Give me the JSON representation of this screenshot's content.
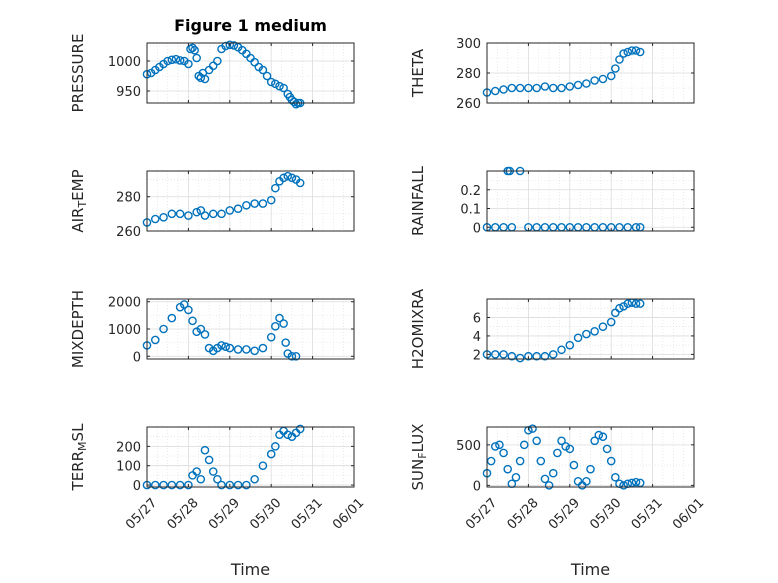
{
  "chart_data": [
    {
      "type": "scatter",
      "title": "Figure 1 medium",
      "ylabel": "PRESSURE",
      "xlabel": "",
      "x_ticks": [
        "05/27",
        "05/28",
        "05/29",
        "05/30",
        "05/31",
        "06/01"
      ],
      "xlim": [
        0,
        5
      ],
      "ylim": [
        930,
        1030
      ],
      "y_ticks": [
        950,
        1000
      ],
      "grid": "on",
      "series": [
        {
          "x": [
            0.0,
            0.1,
            0.2,
            0.3,
            0.4,
            0.5,
            0.6,
            0.7,
            0.8,
            0.9,
            1.0,
            1.05,
            1.1,
            1.15,
            1.2,
            1.25,
            1.3,
            1.35,
            1.4,
            1.5,
            1.6,
            1.7,
            1.8,
            1.9,
            2.0,
            2.1,
            2.2,
            2.3,
            2.4,
            2.5,
            2.6,
            2.7,
            2.8,
            2.9,
            3.0,
            3.1,
            3.2,
            3.3,
            3.4,
            3.45,
            3.5,
            3.55,
            3.6,
            3.65,
            3.7
          ],
          "y": [
            978,
            980,
            985,
            990,
            995,
            1000,
            1002,
            1003,
            1001,
            1000,
            995,
            1020,
            1022,
            1018,
            1005,
            975,
            972,
            980,
            970,
            985,
            992,
            1000,
            1020,
            1025,
            1027,
            1026,
            1023,
            1018,
            1012,
            1005,
            998,
            990,
            985,
            975,
            965,
            962,
            958,
            955,
            945,
            940,
            935,
            932,
            928,
            930,
            930
          ]
        }
      ]
    },
    {
      "type": "scatter",
      "title": "",
      "ylabel": "THETA",
      "xlabel": "",
      "x_ticks": [
        "05/27",
        "05/28",
        "05/29",
        "05/30",
        "05/31",
        "06/01"
      ],
      "xlim": [
        0,
        5
      ],
      "ylim": [
        260,
        300
      ],
      "y_ticks": [
        260,
        280,
        300
      ],
      "grid": "on",
      "series": [
        {
          "x": [
            0.0,
            0.2,
            0.4,
            0.6,
            0.8,
            1.0,
            1.2,
            1.4,
            1.6,
            1.8,
            2.0,
            2.2,
            2.4,
            2.6,
            2.8,
            3.0,
            3.1,
            3.2,
            3.3,
            3.4,
            3.5,
            3.6,
            3.7
          ],
          "y": [
            267,
            268,
            269,
            270,
            270,
            270,
            270,
            271,
            270,
            270,
            271,
            272,
            273,
            275,
            276,
            278,
            283,
            289,
            293,
            294,
            295,
            295,
            294
          ]
        }
      ]
    },
    {
      "type": "scatter",
      "title": "",
      "ylabel": "AIR_TEMP",
      "xlabel": "",
      "x_ticks": [
        "05/27",
        "05/28",
        "05/29",
        "05/30",
        "05/31",
        "06/01"
      ],
      "xlim": [
        0,
        5
      ],
      "ylim": [
        260,
        295
      ],
      "y_ticks": [
        260,
        280
      ],
      "grid": "on",
      "series": [
        {
          "x": [
            0.0,
            0.2,
            0.4,
            0.6,
            0.8,
            1.0,
            1.2,
            1.3,
            1.4,
            1.6,
            1.8,
            2.0,
            2.2,
            2.4,
            2.6,
            2.8,
            3.0,
            3.1,
            3.2,
            3.3,
            3.4,
            3.5,
            3.6,
            3.7
          ],
          "y": [
            265,
            267,
            268,
            270,
            270,
            269,
            271,
            272,
            269,
            270,
            270,
            272,
            273,
            275,
            276,
            276,
            278,
            285,
            289,
            291,
            292,
            291,
            290,
            288
          ]
        }
      ]
    },
    {
      "type": "scatter",
      "title": "",
      "ylabel": "RAINFALL",
      "xlabel": "",
      "x_ticks": [
        "05/27",
        "05/28",
        "05/29",
        "05/30",
        "05/31",
        "06/01"
      ],
      "xlim": [
        0,
        5
      ],
      "ylim": [
        -0.02,
        0.3
      ],
      "y_ticks": [
        0,
        0.1,
        0.2
      ],
      "grid": "on",
      "series": [
        {
          "x": [
            0.0,
            0.2,
            0.4,
            0.5,
            0.55,
            0.6,
            0.8,
            1.0,
            1.2,
            1.4,
            1.6,
            1.8,
            2.0,
            2.2,
            2.4,
            2.6,
            2.8,
            3.0,
            3.2,
            3.4,
            3.6,
            3.7
          ],
          "y": [
            0,
            0,
            0,
            0.3,
            0.3,
            0,
            0.3,
            0,
            0,
            0,
            0,
            0,
            0,
            0,
            0,
            0,
            0,
            0,
            0,
            0,
            0,
            0
          ]
        }
      ]
    },
    {
      "type": "scatter",
      "title": "",
      "ylabel": "MIXDEPTH",
      "xlabel": "",
      "x_ticks": [
        "05/27",
        "05/28",
        "05/29",
        "05/30",
        "05/31",
        "06/01"
      ],
      "xlim": [
        0,
        5
      ],
      "ylim": [
        -100,
        2100
      ],
      "y_ticks": [
        0,
        1000,
        2000
      ],
      "grid": "on",
      "series": [
        {
          "x": [
            0.0,
            0.2,
            0.4,
            0.6,
            0.8,
            0.9,
            1.0,
            1.1,
            1.2,
            1.3,
            1.4,
            1.5,
            1.6,
            1.7,
            1.8,
            1.9,
            2.0,
            2.2,
            2.4,
            2.6,
            2.8,
            3.0,
            3.1,
            3.2,
            3.3,
            3.35,
            3.4,
            3.5,
            3.6
          ],
          "y": [
            400,
            600,
            1000,
            1400,
            1800,
            1900,
            1700,
            1300,
            900,
            1000,
            800,
            300,
            200,
            300,
            400,
            350,
            300,
            250,
            250,
            200,
            300,
            700,
            1100,
            1400,
            1200,
            500,
            100,
            0,
            0
          ]
        }
      ]
    },
    {
      "type": "scatter",
      "title": "",
      "ylabel": "H2OMIXRA",
      "xlabel": "",
      "x_ticks": [
        "05/27",
        "05/28",
        "05/29",
        "05/30",
        "05/31",
        "06/01"
      ],
      "xlim": [
        0,
        5
      ],
      "ylim": [
        1.5,
        8
      ],
      "y_ticks": [
        2,
        4,
        6
      ],
      "grid": "on",
      "series": [
        {
          "x": [
            0.0,
            0.2,
            0.4,
            0.6,
            0.8,
            1.0,
            1.2,
            1.4,
            1.6,
            1.8,
            2.0,
            2.2,
            2.4,
            2.6,
            2.8,
            3.0,
            3.1,
            3.2,
            3.3,
            3.4,
            3.5,
            3.6,
            3.7
          ],
          "y": [
            2.0,
            2.0,
            2.0,
            1.8,
            1.6,
            1.8,
            1.8,
            1.8,
            2.0,
            2.5,
            3.0,
            3.8,
            4.2,
            4.5,
            5.0,
            5.5,
            6.5,
            7.0,
            7.2,
            7.5,
            7.6,
            7.5,
            7.5
          ]
        }
      ]
    },
    {
      "type": "scatter",
      "title": "",
      "ylabel": "TERR_MSL",
      "xlabel": "Time",
      "x_ticks": [
        "05/27",
        "05/28",
        "05/29",
        "05/30",
        "05/31",
        "06/01"
      ],
      "xlim": [
        0,
        5
      ],
      "ylim": [
        -10,
        300
      ],
      "y_ticks": [
        0,
        100,
        200
      ],
      "grid": "on",
      "series": [
        {
          "x": [
            0.0,
            0.2,
            0.4,
            0.6,
            0.8,
            1.0,
            1.1,
            1.2,
            1.3,
            1.4,
            1.5,
            1.6,
            1.7,
            1.8,
            2.0,
            2.2,
            2.4,
            2.6,
            2.8,
            3.0,
            3.1,
            3.2,
            3.3,
            3.4,
            3.5,
            3.6,
            3.7
          ],
          "y": [
            0,
            0,
            0,
            0,
            0,
            0,
            50,
            70,
            30,
            180,
            130,
            70,
            30,
            0,
            0,
            0,
            0,
            30,
            100,
            160,
            200,
            260,
            280,
            260,
            250,
            270,
            290
          ]
        }
      ]
    },
    {
      "type": "scatter",
      "title": "",
      "ylabel": "SUN_FLUX",
      "xlabel": "Time",
      "x_ticks": [
        "05/27",
        "05/28",
        "05/29",
        "05/30",
        "05/31",
        "06/01"
      ],
      "xlim": [
        0,
        5
      ],
      "ylim": [
        -20,
        720
      ],
      "y_ticks": [
        0,
        500
      ],
      "grid": "on",
      "series": [
        {
          "x": [
            0.0,
            0.1,
            0.2,
            0.3,
            0.4,
            0.5,
            0.6,
            0.7,
            0.8,
            0.9,
            1.0,
            1.1,
            1.2,
            1.3,
            1.4,
            1.5,
            1.6,
            1.7,
            1.8,
            1.9,
            2.0,
            2.1,
            2.2,
            2.3,
            2.4,
            2.5,
            2.6,
            2.7,
            2.8,
            2.9,
            3.0,
            3.1,
            3.2,
            3.3,
            3.4,
            3.5,
            3.6,
            3.7
          ],
          "y": [
            150,
            300,
            480,
            500,
            400,
            200,
            20,
            100,
            300,
            500,
            680,
            700,
            550,
            300,
            80,
            0,
            150,
            400,
            550,
            480,
            450,
            250,
            50,
            0,
            50,
            200,
            550,
            620,
            600,
            450,
            300,
            100,
            20,
            0,
            20,
            30,
            40,
            30
          ]
        }
      ]
    }
  ]
}
